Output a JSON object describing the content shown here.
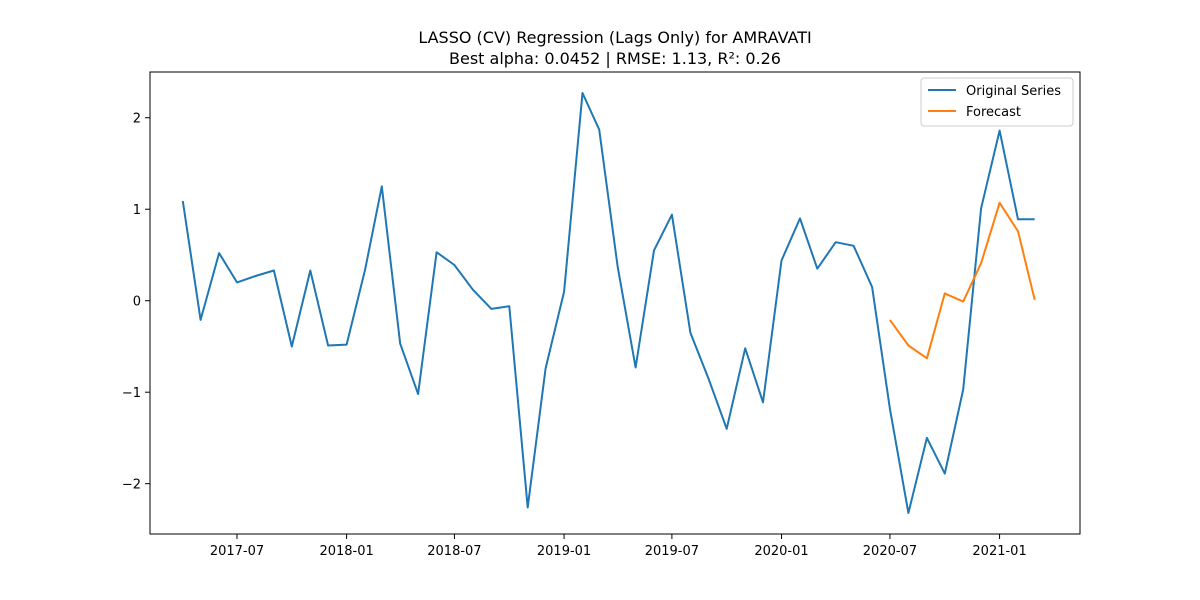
{
  "chart_data": {
    "type": "line",
    "title": "LASSO (CV) Regression (Lags Only) for AMRAVATI",
    "subtitle": "Best alpha: 0.0452 | RMSE: 1.13, R²: 0.26",
    "xlabel": "",
    "ylabel": "",
    "xlim": [
      "2017-02-05",
      "2021-05-16"
    ],
    "ylim": [
      -2.55,
      2.5
    ],
    "x_tick_labels": [
      "2017-07",
      "2018-01",
      "2018-07",
      "2019-01",
      "2019-07",
      "2020-01",
      "2020-07",
      "2021-01"
    ],
    "y_ticks": [
      -2,
      -1,
      0,
      1,
      2
    ],
    "y_tick_labels": [
      "−2",
      "−1",
      "0",
      "1",
      "2"
    ],
    "grid": false,
    "legend_position": "top-right",
    "series": [
      {
        "name": "Original Series",
        "color": "#1f77b4",
        "x": [
          "2017-04",
          "2017-05",
          "2017-06",
          "2017-07",
          "2017-08",
          "2017-09",
          "2017-10",
          "2017-11",
          "2017-12",
          "2018-01",
          "2018-02",
          "2018-03",
          "2018-04",
          "2018-05",
          "2018-06",
          "2018-07",
          "2018-08",
          "2018-09",
          "2018-10",
          "2018-11",
          "2018-12",
          "2019-01",
          "2019-02",
          "2019-03",
          "2019-04",
          "2019-05",
          "2019-06",
          "2019-07",
          "2019-08",
          "2019-09",
          "2019-10",
          "2019-11",
          "2019-12",
          "2020-01",
          "2020-02",
          "2020-03",
          "2020-04",
          "2020-05",
          "2020-06",
          "2020-07",
          "2020-08",
          "2020-09",
          "2020-10",
          "2020-11",
          "2020-12",
          "2021-01",
          "2021-02",
          "2021-03"
        ],
        "values": [
          1.09,
          -0.21,
          0.52,
          0.2,
          0.27,
          0.33,
          -0.5,
          0.33,
          -0.49,
          -0.48,
          0.34,
          1.25,
          -0.47,
          -1.02,
          0.53,
          0.39,
          0.12,
          -0.09,
          -0.06,
          -2.26,
          -0.74,
          0.1,
          2.27,
          1.87,
          0.37,
          -0.73,
          0.55,
          0.94,
          -0.35,
          -0.86,
          -1.4,
          -0.52,
          -1.11,
          0.44,
          0.9,
          0.35,
          0.64,
          0.6,
          0.15,
          -1.18,
          -2.32,
          -1.5,
          -1.89,
          -0.97,
          1.01,
          1.86,
          0.89,
          0.89
        ]
      },
      {
        "name": "Forecast",
        "color": "#ff7f0e",
        "x": [
          "2020-07",
          "2020-08",
          "2020-09",
          "2020-10",
          "2020-11",
          "2020-12",
          "2021-01",
          "2021-02",
          "2021-03"
        ],
        "values": [
          -0.21,
          -0.49,
          -0.63,
          0.08,
          -0.01,
          0.41,
          1.07,
          0.76,
          0.01
        ]
      }
    ]
  }
}
